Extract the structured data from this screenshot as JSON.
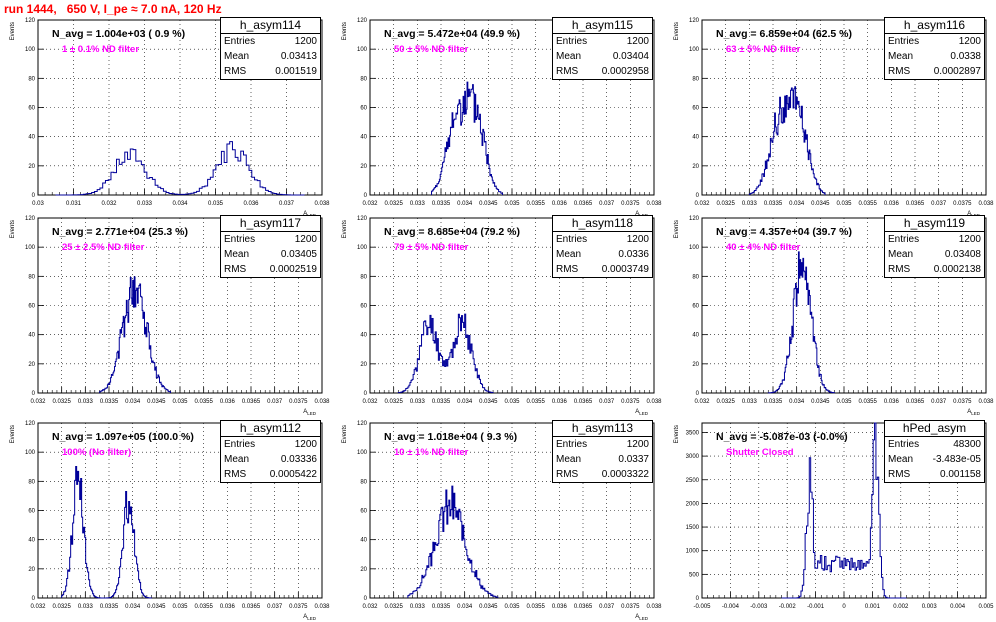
{
  "title": "run 1444,   650 V, I_pe ≈ 7.0 nA, 120 Hz",
  "colors": {
    "title": "#ff0000",
    "hist": "#000099",
    "filter_label": "#ff00ff",
    "grid": "#000000"
  },
  "chart_data": [
    {
      "type": "histogram",
      "name": "h_asym114",
      "n_avg": "N_avg = 1.004e+03 ( 0.9 %)",
      "filter": "1 ± 0.1% ND filter",
      "stats": {
        "entries": "1200",
        "mean": "0.03413",
        "rms": "0.001519"
      },
      "xlabel": "A_LED",
      "ylabel": "Events",
      "xlim": [
        0.03,
        0.038
      ],
      "ylim": [
        0,
        120
      ],
      "xticks": [
        "0.03",
        "0.031",
        "0.032",
        "0.033",
        "0.034",
        "0.035",
        "0.036",
        "0.037",
        "0.038"
      ],
      "yticks": [
        "0",
        "20",
        "40",
        "60",
        "80",
        "100",
        "120"
      ],
      "grid": true,
      "peaks": [
        {
          "mean": 0.0326,
          "sigma": 0.00045,
          "height": 28
        },
        {
          "mean": 0.0355,
          "sigma": 0.00045,
          "height": 33
        }
      ],
      "x_range": [
        0.0305,
        0.0375
      ]
    },
    {
      "type": "histogram",
      "name": "h_asym115",
      "n_avg": "N_avg = 5.472e+04 (49.9 %)",
      "filter": "50 ± 5% ND filter",
      "stats": {
        "entries": "1200",
        "mean": "0.03404",
        "rms": "0.0002958"
      },
      "xlabel": "A_LED",
      "ylabel": "Events",
      "xlim": [
        0.032,
        0.038
      ],
      "ylim": [
        0,
        120
      ],
      "xticks": [
        "0.032",
        "0.0325",
        "0.033",
        "0.0335",
        "0.034",
        "0.0345",
        "0.035",
        "0.0355",
        "0.036",
        "0.0365",
        "0.037",
        "0.0375",
        "0.038"
      ],
      "yticks": [
        "0",
        "20",
        "40",
        "60",
        "80",
        "100",
        "120"
      ],
      "grid": true,
      "peaks": [
        {
          "mean": 0.03385,
          "sigma": 0.00022,
          "height": 52
        },
        {
          "mean": 0.03425,
          "sigma": 0.0002,
          "height": 48
        }
      ],
      "x_range": [
        0.0333,
        0.0348
      ]
    },
    {
      "type": "histogram",
      "name": "h_asym116",
      "n_avg": "N_avg = 6.859e+04 (62.5 %)",
      "filter": "63 ± 5% ND filter",
      "stats": {
        "entries": "1200",
        "mean": "0.0338",
        "rms": "0.0002897"
      },
      "xlabel": "A_LED",
      "ylabel": "Events",
      "xlim": [
        0.032,
        0.038
      ],
      "ylim": [
        0,
        120
      ],
      "xticks": [
        "0.032",
        "0.0325",
        "0.033",
        "0.0335",
        "0.034",
        "0.0345",
        "0.035",
        "0.0355",
        "0.036",
        "0.0365",
        "0.037",
        "0.0375",
        "0.038"
      ],
      "yticks": [
        "0",
        "20",
        "40",
        "60",
        "80",
        "100",
        "120"
      ],
      "grid": true,
      "peaks": [
        {
          "mean": 0.03365,
          "sigma": 0.00022,
          "height": 50
        },
        {
          "mean": 0.03405,
          "sigma": 0.0002,
          "height": 50
        }
      ],
      "x_range": [
        0.033,
        0.0346
      ]
    },
    {
      "type": "histogram",
      "name": "h_asym117",
      "n_avg": "N_avg = 2.771e+04 (25.3 %)",
      "filter": "25 ± 2.5% ND filter",
      "stats": {
        "entries": "1200",
        "mean": "0.03405",
        "rms": "0.0002519"
      },
      "xlabel": "A_LED",
      "ylabel": "Events",
      "xlim": [
        0.032,
        0.038
      ],
      "ylim": [
        0,
        120
      ],
      "xticks": [
        "0.032",
        "0.0325",
        "0.033",
        "0.0335",
        "0.034",
        "0.0345",
        "0.035",
        "0.0355",
        "0.036",
        "0.0365",
        "0.037",
        "0.0375",
        "0.038"
      ],
      "yticks": [
        "0",
        "20",
        "40",
        "60",
        "80",
        "100",
        "120"
      ],
      "grid": true,
      "peaks": [
        {
          "mean": 0.03405,
          "sigma": 0.00025,
          "height": 75
        }
      ],
      "x_range": [
        0.0333,
        0.0348
      ]
    },
    {
      "type": "histogram",
      "name": "h_asym118",
      "n_avg": "N_avg = 8.685e+04 (79.2 %)",
      "filter": "79 ± 5% ND filter",
      "stats": {
        "entries": "1200",
        "mean": "0.0336",
        "rms": "0.0003749"
      },
      "xlabel": "A_LED",
      "ylabel": "Events",
      "xlim": [
        0.032,
        0.038
      ],
      "ylim": [
        0,
        120
      ],
      "xticks": [
        "0.032",
        "0.0325",
        "0.033",
        "0.0335",
        "0.034",
        "0.0345",
        "0.035",
        "0.0355",
        "0.036",
        "0.0365",
        "0.037",
        "0.0375",
        "0.038"
      ],
      "yticks": [
        "0",
        "20",
        "40",
        "60",
        "80",
        "100",
        "120"
      ],
      "grid": true,
      "peaks": [
        {
          "mean": 0.03325,
          "sigma": 0.0002,
          "height": 47
        },
        {
          "mean": 0.03395,
          "sigma": 0.0002,
          "height": 47
        }
      ],
      "x_range": [
        0.0326,
        0.0346
      ]
    },
    {
      "type": "histogram",
      "name": "h_asym119",
      "n_avg": "N_avg = 4.357e+04 (39.7 %)",
      "filter": "40 ± 4% ND filter",
      "stats": {
        "entries": "1200",
        "mean": "0.03408",
        "rms": "0.0002138"
      },
      "xlabel": "A_LED",
      "ylabel": "Events",
      "xlim": [
        0.032,
        0.038
      ],
      "ylim": [
        0,
        120
      ],
      "xticks": [
        "0.032",
        "0.0325",
        "0.033",
        "0.0335",
        "0.034",
        "0.0345",
        "0.035",
        "0.0355",
        "0.036",
        "0.0365",
        "0.037",
        "0.0375",
        "0.038"
      ],
      "yticks": [
        "0",
        "20",
        "40",
        "60",
        "80",
        "100",
        "120"
      ],
      "grid": true,
      "peaks": [
        {
          "mean": 0.03412,
          "sigma": 0.00019,
          "height": 90
        }
      ],
      "x_range": [
        0.0334,
        0.0348
      ]
    },
    {
      "type": "histogram",
      "name": "h_asym112",
      "n_avg": "N_avg = 1.097e+05 (100.0 %)",
      "filter": "100% (No filter)",
      "stats": {
        "entries": "1200",
        "mean": "0.03336",
        "rms": "0.0005422"
      },
      "xlabel": "A_LED",
      "ylabel": "Events",
      "xlim": [
        0.032,
        0.038
      ],
      "ylim": [
        0,
        120
      ],
      "xticks": [
        "0.032",
        "0.0325",
        "0.033",
        "0.0335",
        "0.034",
        "0.0345",
        "0.035",
        "0.0355",
        "0.036",
        "0.0365",
        "0.037",
        "0.0375",
        "0.038"
      ],
      "yticks": [
        "0",
        "20",
        "40",
        "60",
        "80",
        "100",
        "120"
      ],
      "grid": true,
      "peaks": [
        {
          "mean": 0.03285,
          "sigma": 0.00012,
          "height": 82
        },
        {
          "mean": 0.03392,
          "sigma": 0.00012,
          "height": 68
        }
      ],
      "x_range": [
        0.0325,
        0.0344
      ]
    },
    {
      "type": "histogram",
      "name": "h_asym113",
      "n_avg": "N_avg = 1.018e+04 ( 9.3 %)",
      "filter": "10 ± 1% ND filter",
      "stats": {
        "entries": "1200",
        "mean": "0.0337",
        "rms": "0.0003322"
      },
      "xlabel": "A_LED",
      "ylabel": "Events",
      "xlim": [
        0.032,
        0.038
      ],
      "ylim": [
        0,
        120
      ],
      "xticks": [
        "0.032",
        "0.0325",
        "0.033",
        "0.0335",
        "0.034",
        "0.0345",
        "0.035",
        "0.0355",
        "0.036",
        "0.0365",
        "0.037",
        "0.0375",
        "0.038"
      ],
      "yticks": [
        "0",
        "20",
        "40",
        "60",
        "80",
        "100",
        "120"
      ],
      "grid": true,
      "peaks": [
        {
          "mean": 0.0337,
          "sigma": 0.00033,
          "height": 62
        }
      ],
      "x_range": [
        0.0328,
        0.0347
      ]
    },
    {
      "type": "histogram",
      "name": "hPed_asym",
      "n_avg": "N_avg = -5.087e-03 (-0.0%)",
      "filter": "Shutter Closed",
      "stats": {
        "entries": "48300",
        "mean": "-3.483e-05",
        "rms": "0.001158"
      },
      "xlabel": "",
      "ylabel": "Events",
      "xlim": [
        -0.005,
        0.005
      ],
      "ylim": [
        0,
        3700
      ],
      "xticks": [
        "-0.005",
        "-0.004",
        "-0.003",
        "-0.002",
        "-0.001",
        "0",
        "0.001",
        "0.002",
        "0.003",
        "0.004",
        "0.005"
      ],
      "yticks": [
        "0",
        "500",
        "1000",
        "1500",
        "2000",
        "2500",
        "3000",
        "3500"
      ],
      "grid": true,
      "peaks": [
        {
          "mean": -0.0012,
          "sigma": 0.00012,
          "height": 2500
        },
        {
          "mean": 0.0011,
          "sigma": 0.00012,
          "height": 3350
        }
      ],
      "floor": 720,
      "x_range": [
        -0.0022,
        0.0022
      ]
    }
  ]
}
